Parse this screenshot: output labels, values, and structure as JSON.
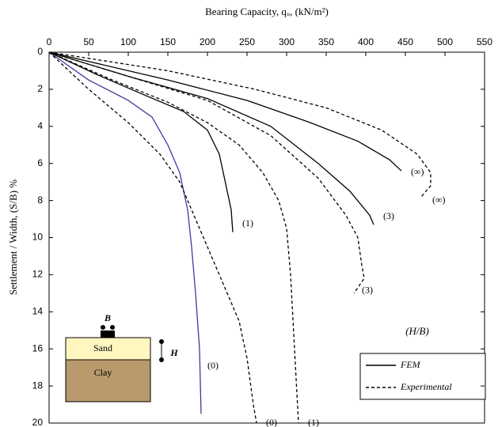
{
  "chart_data": {
    "type": "line",
    "title": "Bearing Capacity, qᵤ, (kN/m²)",
    "y_label": "Settlement / Width, (S/B) %",
    "annotation": "(H/B)",
    "xlim": [
      0,
      550
    ],
    "xticks": [
      0,
      50,
      100,
      150,
      200,
      250,
      300,
      350,
      400,
      450,
      500,
      550
    ],
    "ylim": [
      0,
      20
    ],
    "yticks": [
      0,
      2,
      4,
      6,
      8,
      10,
      12,
      14,
      16,
      18,
      20
    ],
    "y_inverted": true,
    "x_axis_position": "top",
    "legend": [
      {
        "name": "FEM",
        "dash": "solid"
      },
      {
        "name": "Experimental",
        "dash": "dashed"
      }
    ],
    "legend_position": "lower right",
    "series": [
      {
        "name": "(0)",
        "color": "#3a3aa0",
        "dash": "solid",
        "x": [
          0,
          50,
          100,
          130,
          150,
          165,
          175,
          180,
          185,
          190,
          192
        ],
        "values": [
          0,
          1.5,
          2.6,
          3.5,
          5,
          6.5,
          8.5,
          10.5,
          13,
          16,
          19.5
        ]
      },
      {
        "name": "(1)",
        "color": "#000000",
        "dash": "solid",
        "x": [
          0,
          60,
          120,
          170,
          200,
          215,
          225,
          230,
          232
        ],
        "values": [
          0,
          1.2,
          2.3,
          3.2,
          4.2,
          5.5,
          7.5,
          8.5,
          9.7
        ]
      },
      {
        "name": "(3)",
        "color": "#000000",
        "dash": "solid",
        "x": [
          0,
          100,
          200,
          280,
          340,
          380,
          405,
          410
        ],
        "values": [
          0,
          1.3,
          2.5,
          4,
          6,
          7.5,
          8.8,
          9.3
        ]
      },
      {
        "name": "(∞)",
        "color": "#000000",
        "dash": "solid",
        "x": [
          0,
          150,
          250,
          330,
          390,
          430,
          445
        ],
        "values": [
          0,
          1.5,
          2.6,
          3.8,
          4.8,
          5.8,
          6.4
        ]
      },
      {
        "name": "(0)",
        "color": "#000000",
        "dash": "dashed",
        "x": [
          0,
          50,
          100,
          140,
          165,
          185,
          200,
          215,
          240,
          250,
          258,
          262
        ],
        "values": [
          0,
          2,
          3.8,
          5.5,
          7,
          9,
          10.5,
          12,
          14.5,
          16.5,
          19,
          20
        ]
      },
      {
        "name": "(1)",
        "color": "#000000",
        "dash": "dashed",
        "x": [
          0,
          80,
          150,
          200,
          240,
          270,
          290,
          300,
          305,
          310,
          315
        ],
        "values": [
          0,
          1.5,
          2.7,
          3.8,
          5,
          6.5,
          8,
          9.5,
          12,
          16,
          20
        ]
      },
      {
        "name": "(3)",
        "color": "#000000",
        "dash": "dashed",
        "x": [
          0,
          100,
          200,
          280,
          340,
          375,
          390,
          395,
          398,
          385
        ],
        "values": [
          0,
          1.3,
          2.6,
          4.5,
          6.8,
          8.8,
          10,
          11.5,
          12.2,
          13
        ]
      },
      {
        "name": "(∞)",
        "color": "#000000",
        "dash": "dashed",
        "x": [
          0,
          150,
          260,
          350,
          420,
          465,
          482,
          482,
          470
        ],
        "values": [
          0,
          1,
          2,
          3,
          4.2,
          5.5,
          6.5,
          7.2,
          7.8
        ]
      }
    ]
  },
  "diagram": {
    "width_label": "B",
    "depth_label": "H",
    "upper_layer": "Sand",
    "lower_layer": "Clay"
  }
}
